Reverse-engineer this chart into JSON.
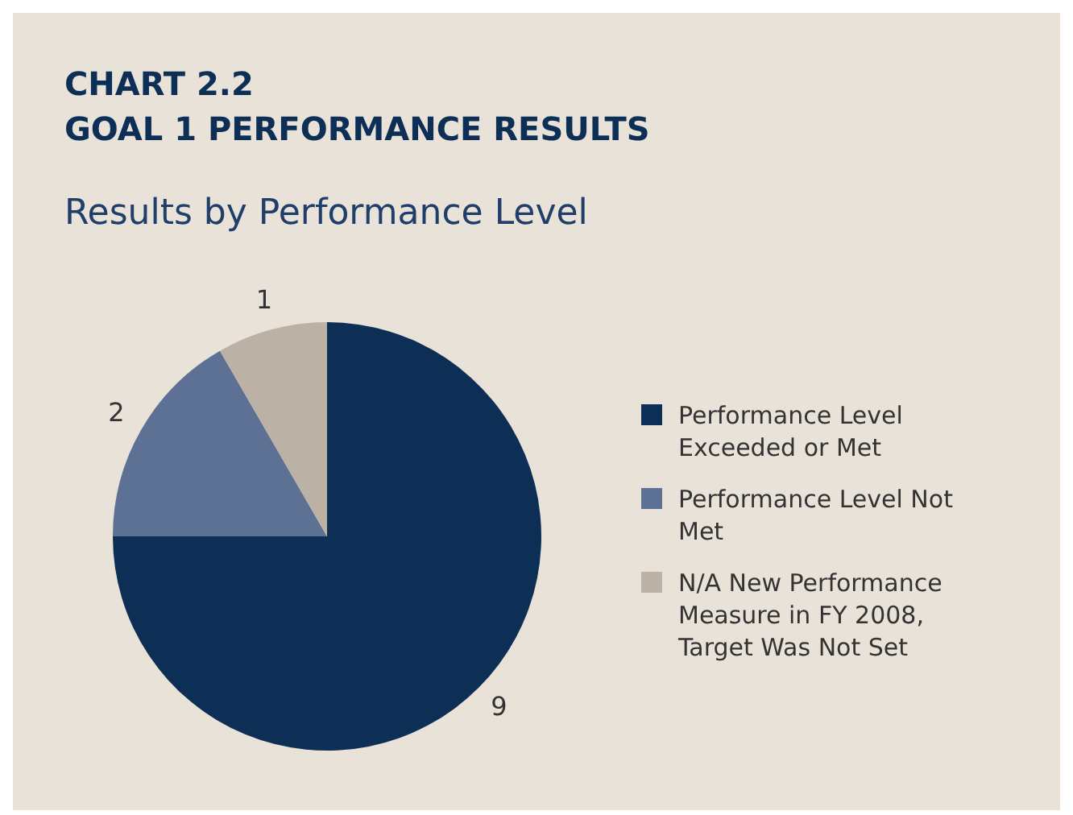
{
  "chart_data": {
    "type": "pie",
    "title": "CHART 2.2\nGOAL 1 PERFORMANCE RESULTS",
    "subtitle": "Results by Performance Level",
    "categories": [
      "Performance Level Exceeded or Met",
      "Performance Level Not Met",
      "N/A New Performance Measure in FY 2008, Target Was Not Set"
    ],
    "values": [
      9,
      2,
      1
    ],
    "colors": [
      "#0d2e55",
      "#5c7194",
      "#bcb1a5"
    ],
    "data_labels": true,
    "legend": "right"
  }
}
